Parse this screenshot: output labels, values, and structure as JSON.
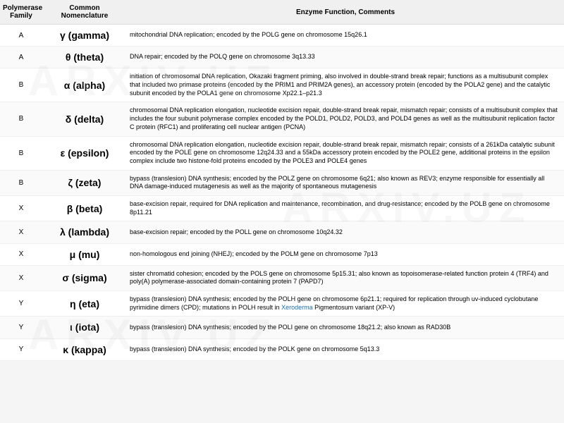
{
  "table": {
    "headers": {
      "family": "Polymerase Family",
      "common": "Common Nomenclature",
      "func": "Enzyme Function, Comments"
    },
    "rows": [
      {
        "family": "A",
        "common": "γ (gamma)",
        "func": "mitochondrial DNA replication; encoded by the POLG gene on chromosome 15q26.1"
      },
      {
        "family": "A",
        "common": "θ (theta)",
        "func": "DNA repair; encoded by the POLQ gene on chromosome 3q13.33"
      },
      {
        "family": "B",
        "common": "α (alpha)",
        "func": "initiation of chromosomal DNA replication, Okazaki fragment priming, also involved in double-strand break repair; functions as a multisubunit complex that included two primase proteins (encoded by the PRIM1 and PRIM2A genes), an accessory protein (encoded by the POLA2 gene) and the catalytic subunit encoded by the POLA1 gene on chromosome Xp22.1–p21.3"
      },
      {
        "family": "B",
        "common": "δ (delta)",
        "func": "chromosomal DNA replication elongation, nucleotide excision repair, double-strand break repair, mismatch repair; consists of a multisubunit complex that includes the four subunit polymerase complex encoded by the POLD1, POLD2, POLD3, and POLD4 genes as well as the multisubunit replication factor C protein (RFC1) and proliferating cell nuclear antigen (PCNA)"
      },
      {
        "family": "B",
        "common": "ε (epsilon)",
        "func": "chromosomal DNA replication elongation, nucleotide excision repair, double-strand break repair, mismatch repair; consists of a 261kDa catalytic subunit encoded by the POLE gene on chromosome 12q24.33 and a 55kDa accessory protein encoded by the POLE2 gene, additional proteins in the epsilon complex include two histone-fold proteins encoded by the POLE3 and POLE4 genes"
      },
      {
        "family": "B",
        "common": "ζ (zeta)",
        "func": "bypass (translesion) DNA synthesis; encoded by the POLZ gene on chromosome 6q21; also known as REV3; enzyme responsible for essentially all DNA damage-induced mutagenesis as well as the majority of spontaneous mutagenesis"
      },
      {
        "family": "X",
        "common": "β (beta)",
        "func": "base-excision repair, required for DNA replication and maintenance, recombination, and drug-resistance; encoded by the POLB gene on chromosome 8p11.21"
      },
      {
        "family": "X",
        "common": "λ (lambda)",
        "func": "base-excision repair; encoded by the POLL gene on chromosome 10q24.32"
      },
      {
        "family": "X",
        "common": "μ (mu)",
        "func": "non-homologous end joining (NHEJ); encoded by the POLM gene on chromosome 7p13"
      },
      {
        "family": "X",
        "common": "σ (sigma)",
        "func": "sister chromatid cohesion; encoded by the POLS gene on chromosome 5p15.31; also known as topoisomerase-related function protein 4 (TRF4) and poly(A) polymerase-associated domain-containing protein 7 (PAPD7)"
      },
      {
        "family": "Y",
        "common": "η (eta)",
        "func_pre": "bypass (translesion) DNA synthesis; encoded by the POLH gene on chromosome 6p21.1; required for replication through uv-induced cyclobutane pyrimidine dimers (CPD); mutations in POLH result in ",
        "link_text": "Xeroderma",
        "func_post": " Pigmentosum variant (XP-V)"
      },
      {
        "family": "Y",
        "common": "ι (iota)",
        "func": "bypass (translesion) DNA synthesis; encoded by the POLI gene on chromosome 18q21.2; also known as RAD30B"
      },
      {
        "family": "Y",
        "common": "κ (kappa)",
        "func": "bypass (translesion) DNA synthesis; encoded by the POLK gene on chromosome 5q13.3"
      }
    ]
  },
  "style": {
    "header_bg": "#f0f0f0",
    "row_even_bg": "#fafafa",
    "row_odd_bg": "#ffffff",
    "link_color": "#1a6fb8",
    "watermark_color": "rgba(200,200,200,0.15)",
    "header_fontsize": 10,
    "cell_fontsize": 9,
    "common_fontsize": 14
  }
}
